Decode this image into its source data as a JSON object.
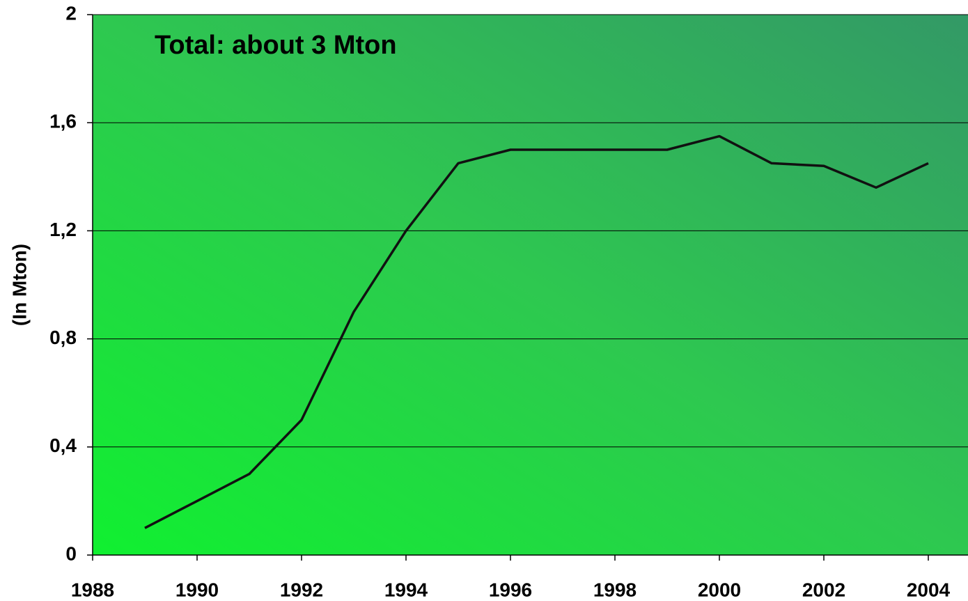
{
  "chart_data": {
    "type": "line",
    "annotation": "Total: about 3 Mton",
    "y_label": "(In Mton)",
    "x": [
      1989,
      1990,
      1991,
      1992,
      1993,
      1994,
      1995,
      1996,
      1997,
      1998,
      1999,
      2000,
      2001,
      2002,
      2003,
      2004
    ],
    "series": [
      {
        "color": "#111111",
        "values": [
          0.1,
          0.2,
          0.3,
          0.5,
          0.9,
          1.2,
          1.45,
          1.5,
          1.5,
          1.5,
          1.5,
          1.55,
          1.45,
          1.44,
          1.36,
          1.45
        ]
      }
    ],
    "xlim": [
      1988,
      2004.76
    ],
    "xticks": [
      1988,
      1990,
      1992,
      1994,
      1996,
      1998,
      2000,
      2002,
      2004
    ],
    "ylim": [
      0,
      2
    ],
    "yticks": [
      0,
      {
        "value": 0.4,
        "label": "0,4"
      },
      {
        "value": 0.8,
        "label": "0,8"
      },
      {
        "value": 1.2,
        "label": "1,2"
      },
      {
        "value": 1.6,
        "label": "1,6"
      },
      2
    ],
    "grid": true
  }
}
